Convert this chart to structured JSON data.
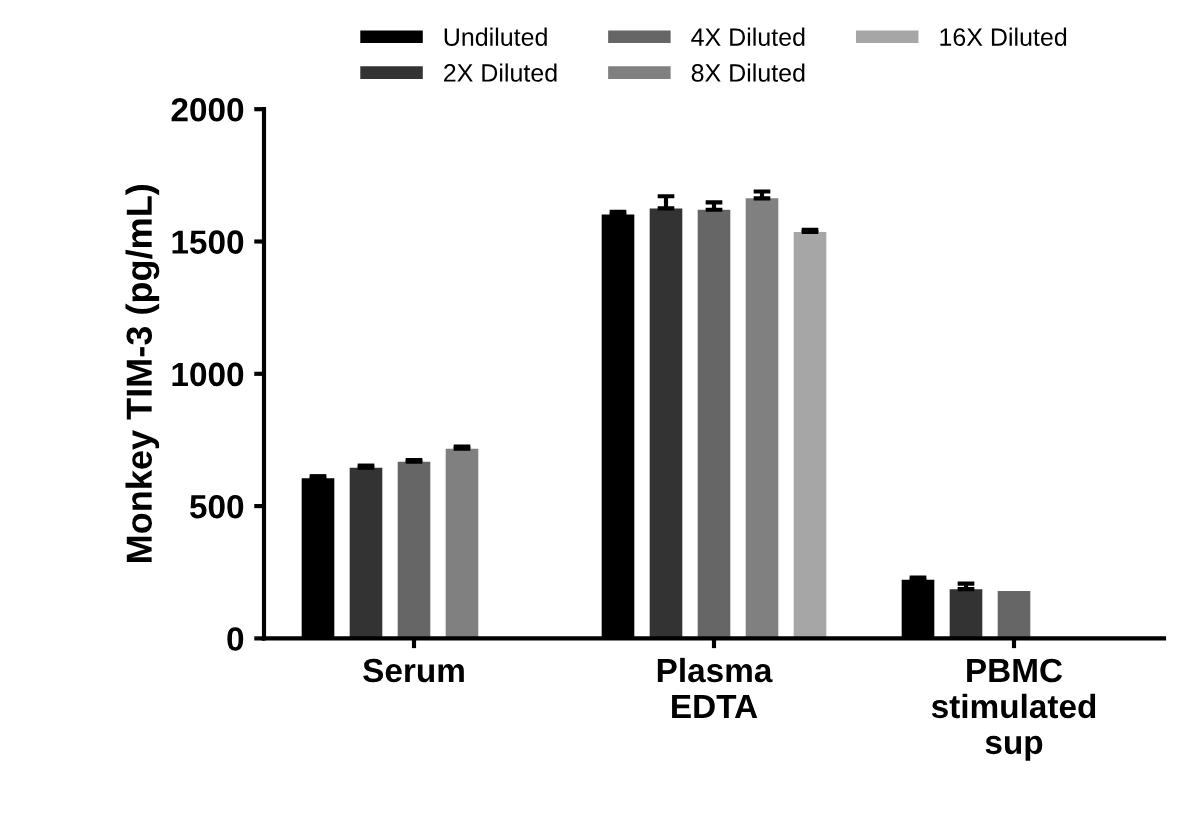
{
  "chart_data": {
    "type": "bar",
    "ylabel": "Monkey TIM-3 (pg/mL)",
    "categories": [
      "Serum",
      "Plasma\nEDTA",
      "PBMC\nstimulated\nsup"
    ],
    "ylim": [
      0,
      2000
    ],
    "yticks": [
      0,
      500,
      1000,
      1500,
      2000
    ],
    "grid": false,
    "legend": "top",
    "series": [
      {
        "name": "Undiluted",
        "color": "#000000",
        "values": [
          605,
          1602,
          222
        ],
        "errors": [
          8,
          10,
          8
        ]
      },
      {
        "name": "2X Diluted",
        "color": "#333333",
        "values": [
          645,
          1625,
          186
        ],
        "errors": [
          8,
          46,
          21
        ]
      },
      {
        "name": "4X Diluted",
        "color": "#666666",
        "values": [
          668,
          1620,
          179
        ],
        "errors": [
          6,
          28,
          null
        ]
      },
      {
        "name": "8X Diluted",
        "color": "#808080",
        "values": [
          717,
          1663,
          null
        ],
        "errors": [
          8,
          26,
          null
        ]
      },
      {
        "name": "16X Diluted",
        "color": "#a6a6a6",
        "values": [
          null,
          1536,
          null
        ],
        "errors": [
          null,
          8,
          null
        ]
      }
    ]
  }
}
